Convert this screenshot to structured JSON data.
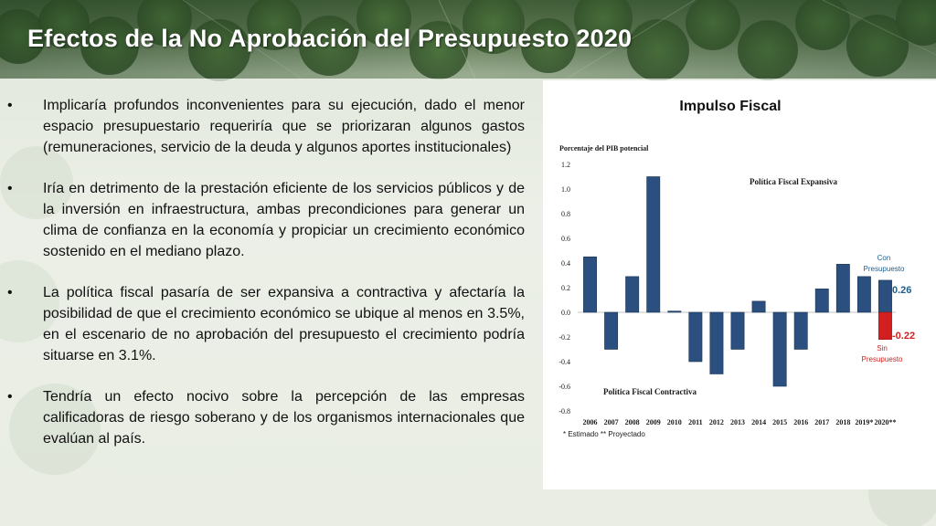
{
  "slide": {
    "title": "Efectos de la No Aprobación del Presupuesto 2020"
  },
  "bullets": [
    {
      "marker": "•",
      "text": "Implicaría profundos inconvenientes para su ejecución, dado el menor espacio presupuestario requeriría que se priorizaran algunos gastos (remuneraciones, servicio de la deuda y algunos aportes institucionales)"
    },
    {
      "marker": "•",
      "text": "Iría en detrimento de la prestación eficiente de los servicios públicos y de la inversión en infraestructura, ambas precondiciones para generar un clima de confianza en la economía y propiciar un crecimiento económico sostenido en el mediano plazo."
    },
    {
      "marker": "•",
      "text": "La política fiscal pasaría de ser expansiva a contractiva y afectaría la posibilidad de que el crecimiento económico se ubique al menos en 3.5%, en el escenario de no aprobación del presupuesto el crecimiento podría situarse en 3.1%."
    },
    {
      "marker": "•",
      "text": "Tendría un efecto nocivo sobre la percepción de las empresas calificadoras de riesgo soberano y de los organismos internacionales que evalúan al país."
    }
  ],
  "chart_data": {
    "type": "bar",
    "title": "Impulso Fiscal",
    "ylabel": "Porcentaje del PIB potencial",
    "xlabel": "",
    "ylim": [
      -0.8,
      1.2
    ],
    "yticks": [
      "1.2",
      "1.0",
      "0.8",
      "0.6",
      "0.4",
      "0.2",
      "0.0",
      "-0.2",
      "-0.4",
      "-0.6",
      "-0.8"
    ],
    "categories": [
      "2006",
      "2007",
      "2008",
      "2009",
      "2010",
      "2011",
      "2012",
      "2013",
      "2014",
      "2015",
      "2016",
      "2017",
      "2018",
      "2019*",
      "2020**"
    ],
    "series": [
      {
        "name": "Con Presupuesto",
        "values": [
          0.45,
          -0.3,
          0.29,
          1.1,
          0.01,
          -0.4,
          -0.5,
          -0.3,
          0.09,
          -0.6,
          -0.3,
          0.19,
          0.39,
          0.29,
          0.26
        ]
      },
      {
        "name": "Sin Presupuesto",
        "values": [
          null,
          null,
          null,
          null,
          null,
          null,
          null,
          null,
          null,
          null,
          null,
          null,
          null,
          null,
          -0.22
        ]
      }
    ],
    "annotations": {
      "expansive": "Política Fiscal Expansiva",
      "contractive": "Política Fiscal Contractiva",
      "con_label_1": "Con",
      "con_label_2": "Presupuesto",
      "sin_label_1": "Sin",
      "sin_label_2": "Presupuesto",
      "con_value": "0.26",
      "sin_value": "-0.22"
    },
    "footnote": "* Estimado  ** Proyectado",
    "colors": {
      "bar": "#2b4f7e",
      "bar_stroke": "#1a3458",
      "sin_bar": "#d21f1f",
      "label_blue": "#1f5f8b",
      "label_red": "#d21f1f",
      "text": "#1a1a1a"
    }
  }
}
